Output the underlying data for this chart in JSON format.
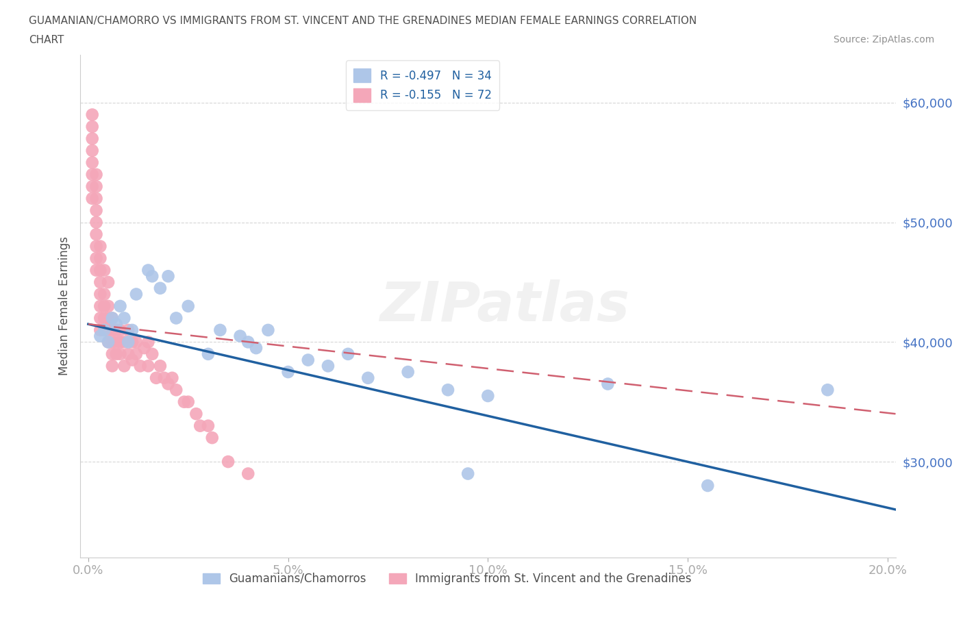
{
  "title_line1": "GUAMANIAN/CHAMORRO VS IMMIGRANTS FROM ST. VINCENT AND THE GRENADINES MEDIAN FEMALE EARNINGS CORRELATION",
  "title_line2": "CHART",
  "source_text": "Source: ZipAtlas.com",
  "ylabel": "Median Female Earnings",
  "watermark": "ZIPatlas",
  "legend_entries": [
    {
      "label": "R = -0.497   N = 34",
      "color": "#aec6e8"
    },
    {
      "label": "R = -0.155   N = 72",
      "color": "#f4a7b9"
    }
  ],
  "legend_label_blue": "Guamanians/Chamorros",
  "legend_label_pink": "Immigrants from St. Vincent and the Grenadines",
  "xlim": [
    -0.002,
    0.202
  ],
  "ylim": [
    22000,
    64000
  ],
  "yticks": [
    30000,
    40000,
    50000,
    60000
  ],
  "ytick_labels": [
    "$30,000",
    "$40,000",
    "$50,000",
    "$60,000"
  ],
  "xticks": [
    0.0,
    0.05,
    0.1,
    0.15,
    0.2
  ],
  "xtick_labels": [
    "0.0%",
    "5.0%",
    "10.0%",
    "15.0%",
    "20.0%"
  ],
  "blue_dot_color": "#aec6e8",
  "pink_dot_color": "#f4a7b9",
  "blue_line_color": "#2060a0",
  "pink_line_color": "#d06070",
  "grid_color": "#cccccc",
  "tick_label_color": "#4472c4",
  "title_color": "#505050",
  "source_color": "#909090",
  "blue_scatter_x": [
    0.003,
    0.004,
    0.005,
    0.006,
    0.007,
    0.008,
    0.009,
    0.01,
    0.011,
    0.012,
    0.015,
    0.016,
    0.018,
    0.02,
    0.022,
    0.025,
    0.03,
    0.033,
    0.038,
    0.04,
    0.042,
    0.045,
    0.05,
    0.055,
    0.06,
    0.065,
    0.07,
    0.08,
    0.09,
    0.095,
    0.1,
    0.13,
    0.155,
    0.185
  ],
  "blue_scatter_y": [
    40500,
    41000,
    40000,
    42000,
    41500,
    43000,
    42000,
    40000,
    41000,
    44000,
    46000,
    45500,
    44500,
    45500,
    42000,
    43000,
    39000,
    41000,
    40500,
    40000,
    39500,
    41000,
    37500,
    38500,
    38000,
    39000,
    37000,
    37500,
    36000,
    29000,
    35500,
    36500,
    28000,
    36000
  ],
  "pink_scatter_x": [
    0.001,
    0.001,
    0.001,
    0.001,
    0.001,
    0.001,
    0.001,
    0.001,
    0.002,
    0.002,
    0.002,
    0.002,
    0.002,
    0.002,
    0.002,
    0.002,
    0.002,
    0.003,
    0.003,
    0.003,
    0.003,
    0.003,
    0.003,
    0.003,
    0.003,
    0.004,
    0.004,
    0.004,
    0.004,
    0.005,
    0.005,
    0.005,
    0.005,
    0.005,
    0.006,
    0.006,
    0.006,
    0.006,
    0.006,
    0.007,
    0.007,
    0.007,
    0.008,
    0.008,
    0.008,
    0.009,
    0.009,
    0.01,
    0.01,
    0.011,
    0.011,
    0.012,
    0.012,
    0.013,
    0.014,
    0.015,
    0.015,
    0.016,
    0.017,
    0.018,
    0.019,
    0.02,
    0.021,
    0.022,
    0.024,
    0.025,
    0.027,
    0.028,
    0.03,
    0.031,
    0.035,
    0.04
  ],
  "pink_scatter_y": [
    57000,
    58000,
    56000,
    54000,
    53000,
    55000,
    52000,
    59000,
    52000,
    51000,
    53000,
    54000,
    50000,
    49000,
    48000,
    47000,
    46000,
    48000,
    46000,
    47000,
    45000,
    44000,
    43000,
    42000,
    41000,
    46000,
    44000,
    43000,
    42000,
    45000,
    43000,
    41000,
    42000,
    40000,
    42000,
    41000,
    40000,
    39000,
    38000,
    41000,
    40000,
    39000,
    40000,
    41000,
    39000,
    40000,
    38000,
    41000,
    39000,
    40000,
    38500,
    40000,
    39000,
    38000,
    39500,
    40000,
    38000,
    39000,
    37000,
    38000,
    37000,
    36500,
    37000,
    36000,
    35000,
    35000,
    34000,
    33000,
    33000,
    32000,
    30000,
    29000
  ],
  "blue_line_x0": 0.0,
  "blue_line_y0": 41500,
  "blue_line_x1": 0.202,
  "blue_line_y1": 26000,
  "pink_line_x0": 0.0,
  "pink_line_y0": 41500,
  "pink_line_x1": 0.202,
  "pink_line_y1": 34000
}
